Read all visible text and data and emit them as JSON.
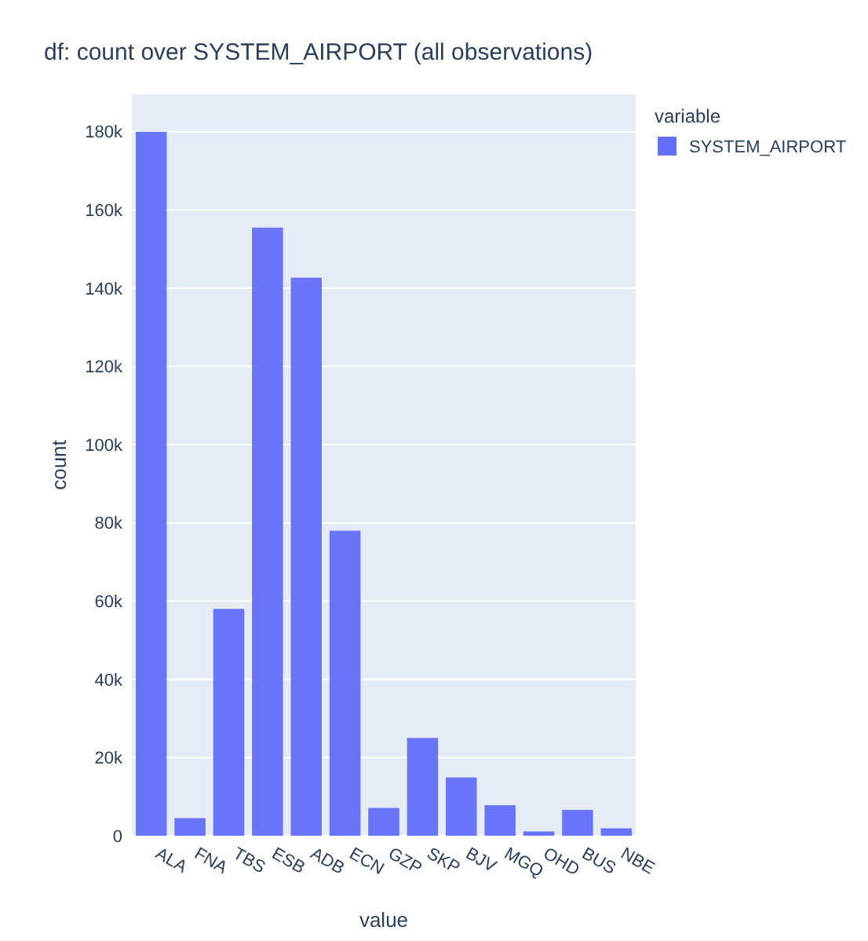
{
  "chart_data": {
    "type": "bar",
    "title": "df:  count over SYSTEM_AIRPORT (all observations)",
    "xlabel": "value",
    "ylabel": "count",
    "legend_title": "variable",
    "categories": [
      "ALA",
      "FNA",
      "TBS",
      "ESB",
      "ADB",
      "ECN",
      "GZP",
      "SKP",
      "BJV",
      "MGQ",
      "OHD",
      "BUS",
      "NBE"
    ],
    "series": [
      {
        "name": "SYSTEM_AIRPORT",
        "color": "#636efa",
        "values": [
          180000,
          4500,
          58000,
          155500,
          142700,
          78000,
          7100,
          25000,
          14900,
          7800,
          1100,
          6600,
          1900
        ]
      }
    ],
    "ylim": [
      0,
      189600
    ],
    "yticks": [
      {
        "value": 0,
        "label": "0"
      },
      {
        "value": 20000,
        "label": "20k"
      },
      {
        "value": 40000,
        "label": "40k"
      },
      {
        "value": 60000,
        "label": "60k"
      },
      {
        "value": 80000,
        "label": "80k"
      },
      {
        "value": 100000,
        "label": "100k"
      },
      {
        "value": 120000,
        "label": "120k"
      },
      {
        "value": 140000,
        "label": "140k"
      },
      {
        "value": 160000,
        "label": "160k"
      },
      {
        "value": 180000,
        "label": "180k"
      }
    ],
    "grid": "y",
    "legend": "top right"
  }
}
